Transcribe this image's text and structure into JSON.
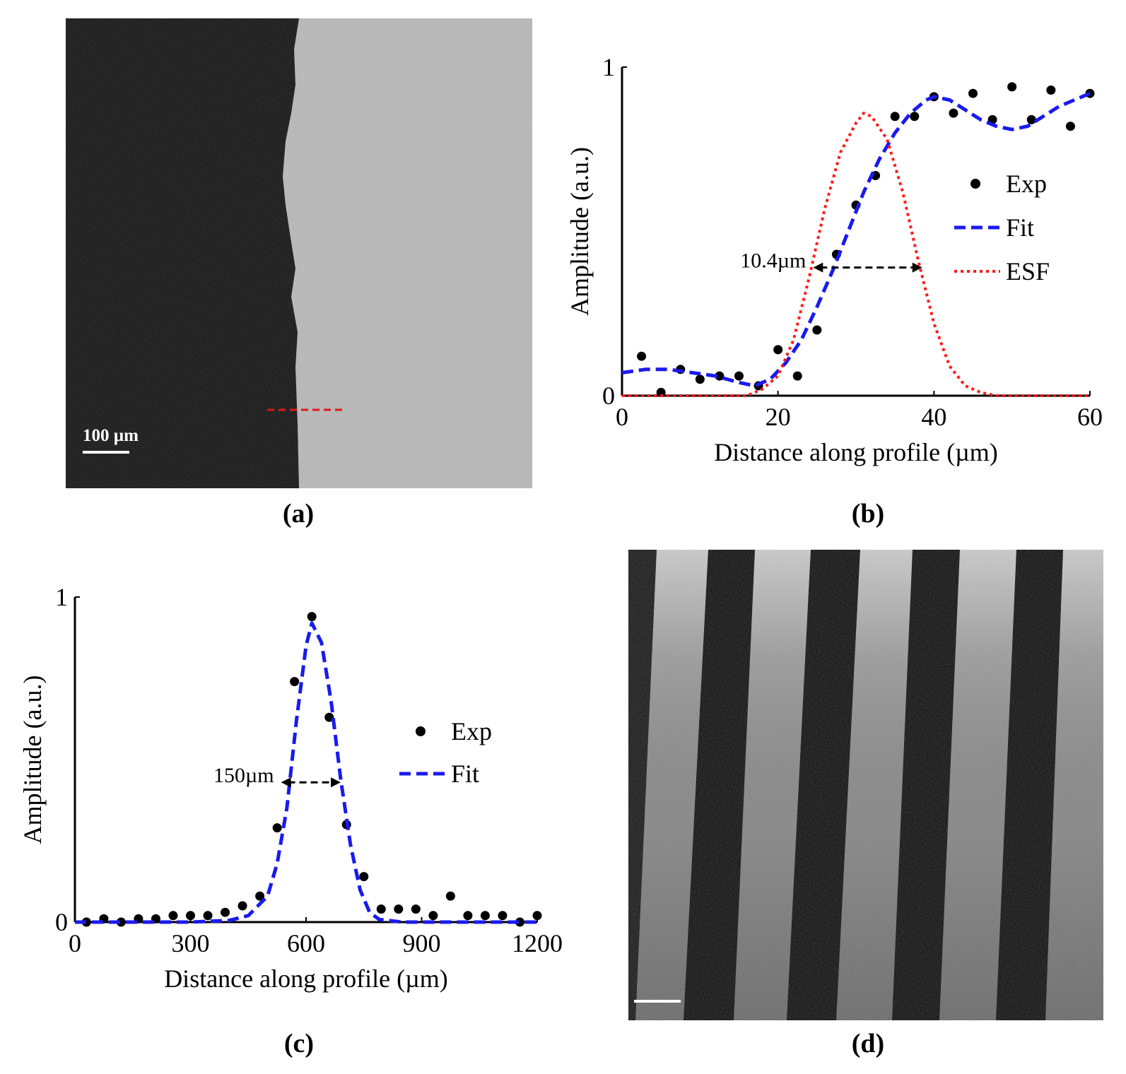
{
  "panels": {
    "a": {
      "label": "(a)",
      "scale_bar": "100 µm"
    },
    "b": {
      "label": "(b)"
    },
    "c": {
      "label": "(c)"
    },
    "d": {
      "label": "(d)"
    }
  },
  "colors": {
    "exp": "#000000",
    "fit": "#1a1aee",
    "esf": "#ff1a1a",
    "arrow": "#000000",
    "profile": "#e01818"
  },
  "chart_data": [
    {
      "id": "b",
      "type": "scatter",
      "title": "",
      "xlabel": "Distance along profile (µm)",
      "ylabel": "Amplitude (a.u.)",
      "xlim": [
        0,
        60
      ],
      "ylim": [
        0,
        1
      ],
      "xticks": [
        0,
        20,
        40,
        60
      ],
      "yticks": [
        0,
        1
      ],
      "xtick_labels": [
        "0",
        "20",
        "40",
        "60"
      ],
      "ytick_labels": [
        "0",
        "1"
      ],
      "legend": [
        "Exp",
        "Fit",
        "ESF"
      ],
      "legend_position": "right",
      "annotation": {
        "text": "10.4µm",
        "from": 24.5,
        "to": 38.5,
        "y": 0.39
      },
      "series": [
        {
          "name": "Exp",
          "style": "dots",
          "x": [
            2.5,
            5,
            7.5,
            10,
            12.5,
            15,
            17.5,
            20,
            22.5,
            25,
            27.5,
            30,
            32.5,
            35,
            37.5,
            40,
            42.5,
            45,
            47.5,
            50,
            52.5,
            55,
            57.5,
            60
          ],
          "y": [
            0.12,
            0.01,
            0.08,
            0.05,
            0.06,
            0.06,
            0.03,
            0.14,
            0.06,
            0.2,
            0.43,
            0.58,
            0.67,
            0.85,
            0.85,
            0.91,
            0.86,
            0.92,
            0.84,
            0.94,
            0.84,
            0.93,
            0.82,
            0.92
          ]
        },
        {
          "name": "Fit",
          "style": "dashed",
          "x": [
            0,
            3,
            6,
            9,
            12,
            15,
            17,
            19,
            21,
            23,
            25,
            27,
            29,
            31,
            33,
            35,
            37,
            39,
            40,
            42,
            44,
            46,
            48,
            50,
            52,
            54,
            56,
            58,
            60
          ],
          "y": [
            0.07,
            0.08,
            0.08,
            0.07,
            0.06,
            0.04,
            0.03,
            0.05,
            0.1,
            0.17,
            0.27,
            0.38,
            0.5,
            0.62,
            0.72,
            0.8,
            0.86,
            0.9,
            0.91,
            0.9,
            0.87,
            0.84,
            0.82,
            0.81,
            0.82,
            0.85,
            0.88,
            0.9,
            0.92
          ]
        },
        {
          "name": "ESF",
          "style": "dotted",
          "x": [
            0,
            10,
            16,
            18,
            20,
            22,
            24,
            26,
            28,
            30,
            31,
            32,
            34,
            36,
            38,
            40,
            42,
            44,
            46,
            48,
            60
          ],
          "y": [
            0,
            0,
            0,
            0.02,
            0.06,
            0.17,
            0.36,
            0.57,
            0.74,
            0.83,
            0.86,
            0.85,
            0.78,
            0.62,
            0.41,
            0.22,
            0.09,
            0.03,
            0.01,
            0,
            0
          ]
        }
      ]
    },
    {
      "id": "c",
      "type": "scatter",
      "title": "",
      "xlabel": "Distance along profile (µm)",
      "ylabel": "Amplitude (a.u.)",
      "xlim": [
        0,
        1200
      ],
      "ylim": [
        0,
        1
      ],
      "xticks": [
        0,
        300,
        600,
        900,
        1200
      ],
      "yticks": [
        0,
        1
      ],
      "xtick_labels": [
        "0",
        "300",
        "600",
        "900",
        "1200"
      ],
      "ytick_labels": [
        "0",
        "1"
      ],
      "legend": [
        "Exp",
        "Fit"
      ],
      "legend_position": "right",
      "annotation": {
        "text": "150µm",
        "from": 535,
        "to": 690,
        "y": 0.43
      },
      "series": [
        {
          "name": "Exp",
          "style": "dots",
          "x": [
            30,
            75,
            120,
            165,
            210,
            255,
            300,
            345,
            390,
            435,
            480,
            525,
            570,
            615,
            660,
            705,
            750,
            795,
            840,
            885,
            930,
            975,
            1020,
            1065,
            1110,
            1155,
            1200
          ],
          "y": [
            0.0,
            0.01,
            0.0,
            0.01,
            0.01,
            0.02,
            0.02,
            0.02,
            0.03,
            0.05,
            0.08,
            0.29,
            0.74,
            0.94,
            0.63,
            0.3,
            0.14,
            0.04,
            0.04,
            0.04,
            0.02,
            0.08,
            0.02,
            0.02,
            0.02,
            0.0,
            0.02
          ]
        },
        {
          "name": "Fit",
          "style": "dashed",
          "x": [
            0,
            200,
            300,
            400,
            450,
            500,
            525,
            550,
            575,
            600,
            615,
            640,
            665,
            690,
            715,
            740,
            765,
            790,
            850,
            1000,
            1200
          ],
          "y": [
            0,
            0,
            0,
            0.005,
            0.02,
            0.08,
            0.18,
            0.35,
            0.62,
            0.85,
            0.92,
            0.86,
            0.68,
            0.44,
            0.24,
            0.1,
            0.03,
            0.008,
            0,
            0,
            0
          ]
        }
      ]
    }
  ]
}
